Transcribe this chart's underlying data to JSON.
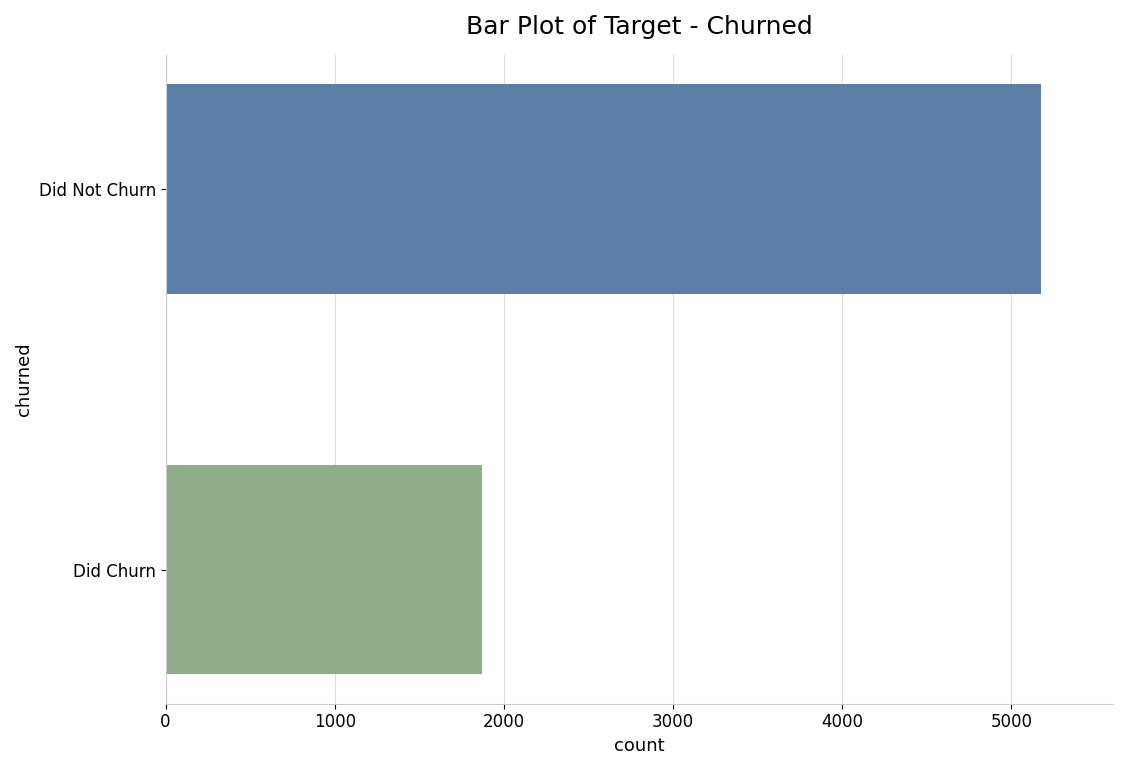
{
  "title": "Bar Plot of Target - Churned",
  "categories": [
    "Did Churn",
    "Did Not Churn"
  ],
  "values": [
    1869,
    5174
  ],
  "bar_colors": [
    "#8fad88",
    "#5b7fa6"
  ],
  "xlabel": "count",
  "ylabel": "churned",
  "xlim": [
    0,
    5600
  ],
  "xticks": [
    0,
    1000,
    2000,
    3000,
    4000,
    5000
  ],
  "background_color": "#ffffff",
  "axes_facecolor": "#ffffff",
  "grid_color": "#dddddd",
  "title_fontsize": 18,
  "label_fontsize": 13,
  "tick_fontsize": 12,
  "bar_height": 0.55
}
